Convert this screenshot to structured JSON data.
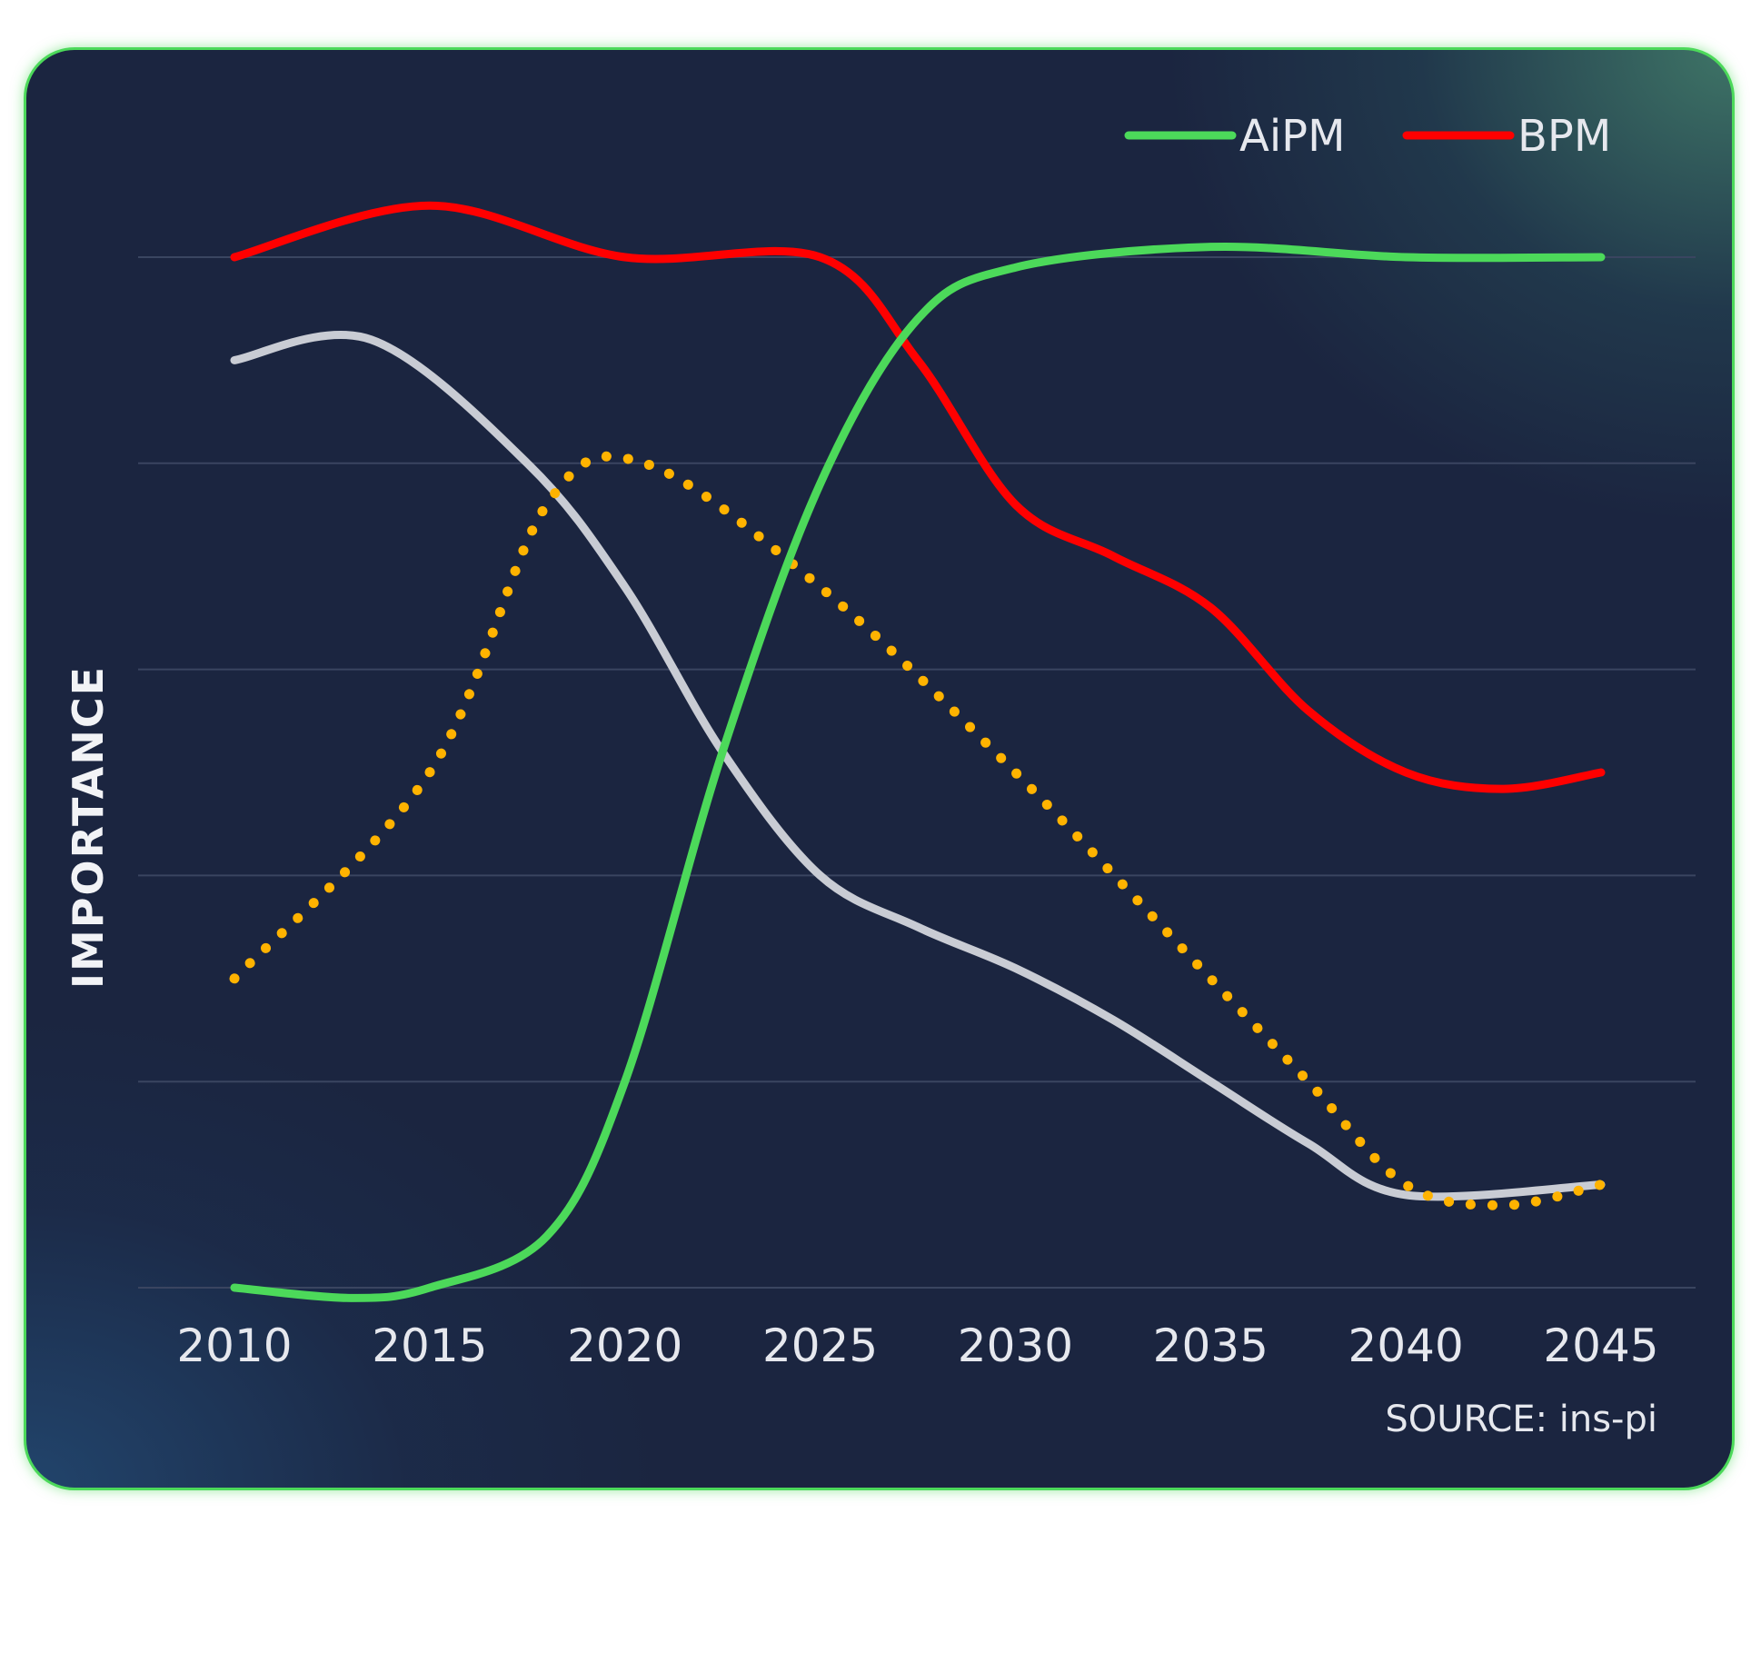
{
  "chart_data": {
    "type": "line",
    "title": "",
    "xlabel": "",
    "ylabel": "IMPORTANCE",
    "source": "SOURCE: ins-pi",
    "x": [
      2010,
      2015,
      2020,
      2025,
      2030,
      2035,
      2040,
      2045
    ],
    "x_tick_labels": [
      "2010",
      "2015",
      "2020",
      "2025",
      "2030",
      "2035",
      "2040",
      "2045"
    ],
    "ylim": [
      0,
      5
    ],
    "y_tick_labels_shown": false,
    "grid": "horizontal",
    "legend_position": "top-right",
    "series": [
      {
        "name": "AiPM",
        "color": "#4cd95a",
        "style": "solid",
        "in_legend": true,
        "points": [
          [
            2010,
            0.0
          ],
          [
            2013,
            -0.05
          ],
          [
            2015,
            0.0
          ],
          [
            2018,
            0.25
          ],
          [
            2020,
            1.0
          ],
          [
            2022.5,
            2.6
          ],
          [
            2025,
            3.9
          ],
          [
            2027.5,
            4.7
          ],
          [
            2030,
            4.95
          ],
          [
            2035,
            5.05
          ],
          [
            2040,
            5.0
          ],
          [
            2045,
            5.0
          ]
        ]
      },
      {
        "name": "BPM",
        "color": "#ff0000",
        "style": "solid",
        "in_legend": true,
        "points": [
          [
            2010,
            5.0
          ],
          [
            2015,
            5.25
          ],
          [
            2020,
            5.0
          ],
          [
            2025,
            5.0
          ],
          [
            2027.5,
            4.5
          ],
          [
            2030,
            3.8
          ],
          [
            2032.5,
            3.55
          ],
          [
            2035,
            3.3
          ],
          [
            2037.5,
            2.8
          ],
          [
            2040,
            2.5
          ],
          [
            2042.5,
            2.42
          ],
          [
            2045,
            2.5
          ]
        ]
      },
      {
        "name": "",
        "color": "#c9ccd4",
        "style": "solid",
        "in_legend": false,
        "points": [
          [
            2010,
            4.5
          ],
          [
            2013.5,
            4.6
          ],
          [
            2017.5,
            4.0
          ],
          [
            2020,
            3.4
          ],
          [
            2022.5,
            2.6
          ],
          [
            2025,
            2.0
          ],
          [
            2027.5,
            1.75
          ],
          [
            2030,
            1.55
          ],
          [
            2032.5,
            1.3
          ],
          [
            2035,
            1.0
          ],
          [
            2037.5,
            0.7
          ],
          [
            2040,
            0.45
          ],
          [
            2045,
            0.5
          ]
        ]
      },
      {
        "name": "",
        "color": "#ffb300",
        "style": "dotted",
        "in_legend": false,
        "points": [
          [
            2010,
            1.5
          ],
          [
            2015,
            2.5
          ],
          [
            2018,
            3.8
          ],
          [
            2020.5,
            4.0
          ],
          [
            2025,
            3.4
          ],
          [
            2030,
            2.5
          ],
          [
            2035,
            1.5
          ],
          [
            2037.5,
            1.0
          ],
          [
            2040,
            0.5
          ],
          [
            2042.5,
            0.4
          ],
          [
            2045,
            0.5
          ]
        ]
      }
    ]
  }
}
